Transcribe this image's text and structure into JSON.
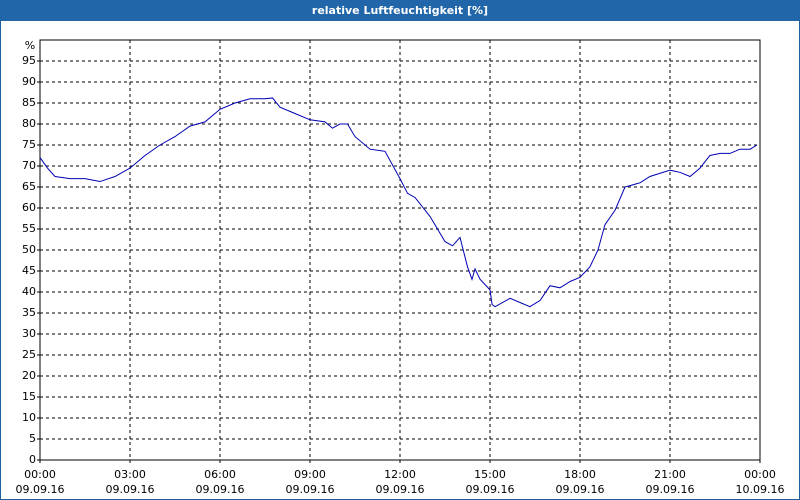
{
  "chart_data": {
    "type": "line",
    "title": "relative Luftfeuchtigkeit [%]",
    "y_label": "%",
    "x": [
      0,
      0.25,
      0.5,
      1,
      1.5,
      2,
      2.5,
      3,
      3.5,
      4,
      4.5,
      5,
      5.5,
      6,
      6.5,
      7,
      7.5,
      7.75,
      8,
      8.5,
      9,
      9.5,
      9.75,
      10,
      10.25,
      10.5,
      11,
      11.5,
      12,
      12.25,
      12.5,
      13,
      13.5,
      13.75,
      14,
      14.25,
      14.4,
      14.5,
      14.67,
      15,
      15.07,
      15.17,
      15.67,
      16,
      16.33,
      16.67,
      17,
      17.33,
      17.67,
      18,
      18.33,
      18.6,
      18.83,
      19.17,
      19.5,
      20,
      20.33,
      21,
      21.33,
      21.67,
      22,
      22.33,
      22.67,
      23,
      23.33,
      23.67,
      23.9
    ],
    "series": [
      {
        "name": "relative Luftfeuchtigkeit",
        "color": "#0000b4",
        "values": [
          72,
          69.5,
          67.5,
          67,
          67,
          66.3,
          67.5,
          69.5,
          72.5,
          75,
          77,
          79.5,
          80.5,
          83.5,
          85,
          86,
          86,
          86.2,
          84,
          82.5,
          81,
          80.5,
          79,
          80,
          80,
          77,
          74,
          73.5,
          67,
          63.5,
          62.5,
          58,
          52,
          51,
          53,
          46,
          43,
          45.5,
          43,
          40.5,
          37,
          36.5,
          38.5,
          37.5,
          36.5,
          38,
          41.5,
          41,
          42.5,
          43.5,
          46,
          50,
          56,
          59.5,
          65,
          66,
          67.5,
          69,
          68.5,
          67.5,
          69.5,
          72.5,
          73,
          73,
          74,
          74,
          75
        ]
      }
    ],
    "xlim": [
      0,
      24
    ],
    "xticks": [
      {
        "value": 0,
        "label": "00:00 09.09.16"
      },
      {
        "value": 3,
        "label": "03:00 09.09.16"
      },
      {
        "value": 6,
        "label": "06:00 09.09.16"
      },
      {
        "value": 9,
        "label": "09:00 09.09.16"
      },
      {
        "value": 12,
        "label": "12:00 09.09.16"
      },
      {
        "value": 15,
        "label": "15:00 09.09.16"
      },
      {
        "value": 18,
        "label": "18:00 09.09.16"
      },
      {
        "value": 21,
        "label": "21:00 09.09.16"
      },
      {
        "value": 24,
        "label": "00:00 10.09.16"
      }
    ],
    "ylim": [
      0,
      100
    ],
    "yticks": [
      0,
      5,
      10,
      15,
      20,
      25,
      30,
      35,
      40,
      45,
      50,
      55,
      60,
      65,
      70,
      75,
      80,
      85,
      90,
      95
    ],
    "grid": true
  }
}
